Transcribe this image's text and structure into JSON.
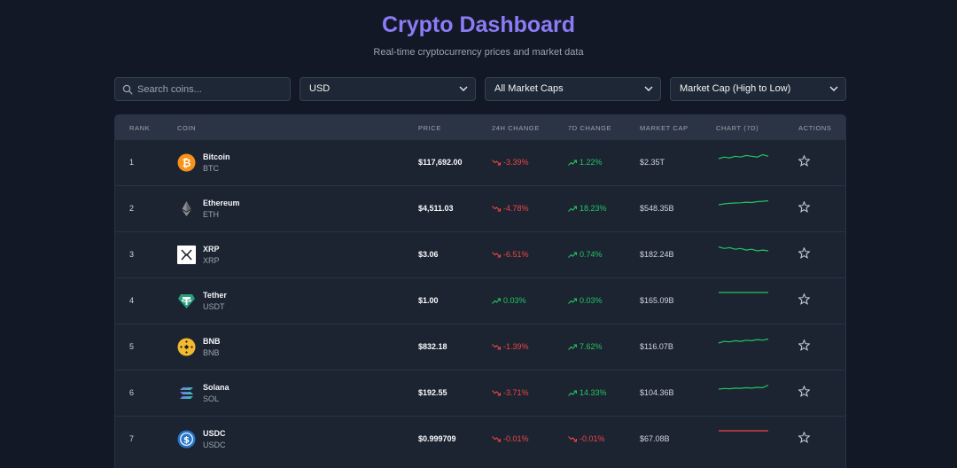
{
  "header": {
    "title": "Crypto Dashboard",
    "subtitle": "Real-time cryptocurrency prices and market data"
  },
  "controls": {
    "search_placeholder": "Search coins...",
    "currency": "USD",
    "market_cap_filter": "All Market Caps",
    "sort": "Market Cap (High to Low)"
  },
  "colors": {
    "accent": "#8b7cf6",
    "positive": "#22c55e",
    "negative": "#ef4444",
    "background": "#121826"
  },
  "table": {
    "headers": {
      "rank": "RANK",
      "coin": "COIN",
      "price": "PRICE",
      "change_24h": "24H CHANGE",
      "change_7d": "7D CHANGE",
      "market_cap": "MARKET CAP",
      "chart": "CHART (7D)",
      "actions": "ACTIONS"
    },
    "rows": [
      {
        "rank": "1",
        "name": "Bitcoin",
        "symbol": "BTC",
        "price": "$117,692.00",
        "change_24h": "-3.39%",
        "change_7d": "1.22%",
        "market_cap": "$2.35T",
        "icon": "bitcoin-icon",
        "dir24": "down",
        "dir7": "up",
        "sparkline": [
          3,
          3.2,
          3.1,
          3.3,
          3.2,
          3.4,
          3.3,
          3.2,
          3.5,
          3.3
        ]
      },
      {
        "rank": "2",
        "name": "Ethereum",
        "symbol": "ETH",
        "price": "$4,511.03",
        "change_24h": "-4.78%",
        "change_7d": "18.23%",
        "market_cap": "$548.35B",
        "icon": "ethereum-icon",
        "dir24": "down",
        "dir7": "up",
        "sparkline": [
          1,
          1.5,
          1.8,
          2,
          2.1,
          2.5,
          2.3,
          2.8,
          3,
          3.3
        ]
      },
      {
        "rank": "3",
        "name": "XRP",
        "symbol": "XRP",
        "price": "$3.06",
        "change_24h": "-6.51%",
        "change_7d": "0.74%",
        "market_cap": "$182.24B",
        "icon": "xrp-icon",
        "dir24": "down",
        "dir7": "up",
        "sparkline": [
          3.3,
          3.1,
          3.2,
          3,
          3.1,
          2.9,
          3,
          2.8,
          2.9,
          2.8
        ]
      },
      {
        "rank": "4",
        "name": "Tether",
        "symbol": "USDT",
        "price": "$1.00",
        "change_24h": "0.03%",
        "change_7d": "0.03%",
        "market_cap": "$165.09B",
        "icon": "tether-icon",
        "dir24": "up",
        "dir7": "up",
        "sparkline": [
          3,
          3,
          3,
          3,
          3,
          3,
          3,
          3,
          3,
          3
        ]
      },
      {
        "rank": "5",
        "name": "BNB",
        "symbol": "BNB",
        "price": "$832.18",
        "change_24h": "-1.39%",
        "change_7d": "7.62%",
        "market_cap": "$116.07B",
        "icon": "bnb-icon",
        "dir24": "down",
        "dir7": "up",
        "sparkline": [
          2.5,
          2.8,
          2.7,
          2.9,
          2.8,
          3,
          2.9,
          3.1,
          3,
          3.2
        ]
      },
      {
        "rank": "6",
        "name": "Solana",
        "symbol": "SOL",
        "price": "$192.55",
        "change_24h": "-3.71%",
        "change_7d": "14.33%",
        "market_cap": "$104.36B",
        "icon": "solana-icon",
        "dir24": "down",
        "dir7": "up",
        "sparkline": [
          1.5,
          1.8,
          1.7,
          2,
          1.9,
          2.2,
          2,
          2.4,
          2.2,
          3.5
        ]
      },
      {
        "rank": "7",
        "name": "USDC",
        "symbol": "USDC",
        "price": "$0.999709",
        "change_24h": "-0.01%",
        "change_7d": "-0.01%",
        "market_cap": "$67.08B",
        "icon": "usdc-icon",
        "dir24": "down",
        "dir7": "down",
        "sparkline": [
          3,
          3,
          3,
          3,
          3,
          3,
          3,
          3,
          3,
          3
        ]
      }
    ]
  }
}
